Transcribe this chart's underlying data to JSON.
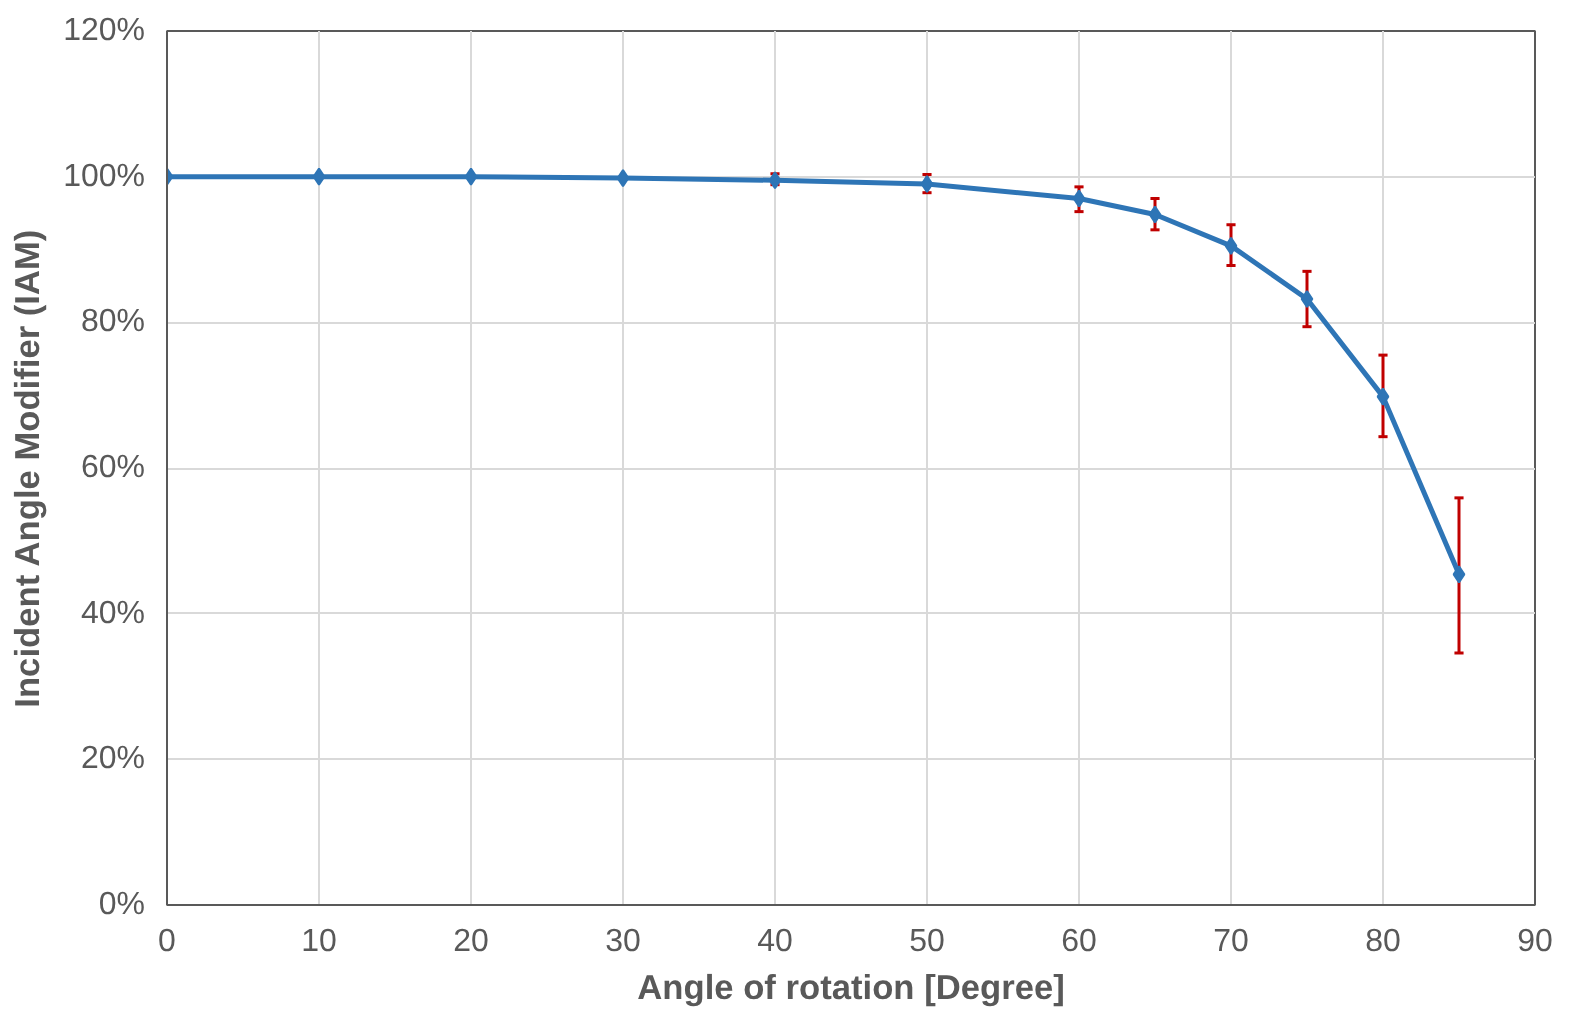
{
  "chart_data": {
    "type": "line",
    "xlabel": "Angle of rotation [Degree]",
    "ylabel": "Incident Angle Modifier (IAM)",
    "x": [
      0,
      10,
      20,
      30,
      40,
      50,
      60,
      65,
      70,
      75,
      80,
      85
    ],
    "series": [
      {
        "color": "#2e75b6",
        "values": [
          100,
          100,
          100,
          99.8,
          99.5,
          99,
          97,
          94.8,
          90.5,
          83.2,
          69.8,
          45.4
        ],
        "errors": [
          null,
          null,
          null,
          null,
          [
            98.9,
            100.4
          ],
          [
            97.8,
            100.3
          ],
          [
            95.2,
            98.6
          ],
          [
            92.7,
            97
          ],
          [
            87.8,
            93.4
          ],
          [
            79.4,
            87
          ],
          [
            64.3,
            75.5
          ],
          [
            34.6,
            55.9
          ]
        ]
      }
    ],
    "xlim": [
      0,
      90
    ],
    "xticks": [
      0,
      10,
      20,
      30,
      40,
      50,
      60,
      70,
      80,
      90
    ],
    "ylim": [
      0,
      120
    ],
    "yticks": [
      {
        "value": 0,
        "label": "0%"
      },
      {
        "value": 20,
        "label": "20%"
      },
      {
        "value": 40,
        "label": "40%"
      },
      {
        "value": 60,
        "label": "60%"
      },
      {
        "value": 80,
        "label": "80%"
      },
      {
        "value": 100,
        "label": "100%"
      },
      {
        "value": 120,
        "label": "120%"
      }
    ],
    "grid": true,
    "marker": "diamond",
    "line_style": "solid"
  }
}
